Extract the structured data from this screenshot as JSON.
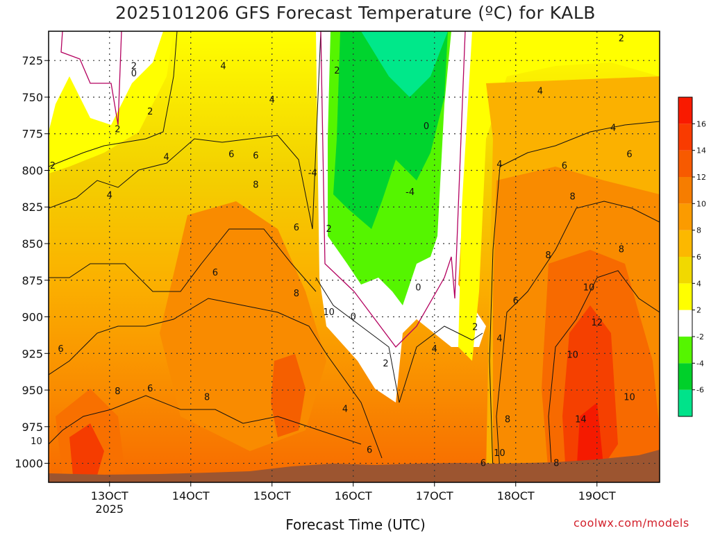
{
  "title": "2025101206 GFS Forecast Temperature (ºC) for KALB",
  "watermark": "coolwx.com/models",
  "chart_data": {
    "type": "heatmap",
    "title": "2025101206 GFS Forecast Temperature (ºC) for KALB",
    "xlabel": "Forecast Time (UTC)",
    "ylabel": "",
    "x_ticks": [
      "13OCT",
      "14OCT",
      "15OCT",
      "16OCT",
      "17OCT",
      "18OCT",
      "19OCT"
    ],
    "x_year_label": "2025",
    "y_ticks": [
      725,
      750,
      775,
      800,
      825,
      850,
      875,
      900,
      925,
      950,
      975,
      1000
    ],
    "y_axis_inverted": true,
    "y_range_hpa": [
      705,
      1013
    ],
    "colorbar": {
      "levels": [
        -6,
        -4,
        -2,
        2,
        4,
        6,
        8,
        10,
        12,
        14,
        16
      ],
      "colors": [
        "#00e38a",
        "#00d02a",
        "#55f500",
        "#ffffff",
        "#ffff00",
        "#f1d900",
        "#fcb800",
        "#fb9b00",
        "#f67d00",
        "#f75a00",
        "#f93b00",
        "#f91a00"
      ]
    },
    "contour_labels": [
      {
        "value": "2",
        "day": 13.3,
        "hpa": 729
      },
      {
        "value": "0",
        "day": 13.3,
        "hpa": 734
      },
      {
        "value": "2",
        "day": 13.5,
        "hpa": 760
      },
      {
        "value": "4",
        "day": 14.4,
        "hpa": 729
      },
      {
        "value": "2",
        "day": 13.1,
        "hpa": 772
      },
      {
        "value": "4",
        "day": 13.7,
        "hpa": 791
      },
      {
        "value": "6",
        "day": 14.5,
        "hpa": 789
      },
      {
        "value": "4",
        "day": 15.0,
        "hpa": 752
      },
      {
        "value": "6",
        "day": 14.8,
        "hpa": 790
      },
      {
        "value": "2",
        "day": 12.3,
        "hpa": 797
      },
      {
        "value": "4",
        "day": 13.0,
        "hpa": 817
      },
      {
        "value": "8",
        "day": 14.8,
        "hpa": 810
      },
      {
        "value": "6",
        "day": 15.3,
        "hpa": 839
      },
      {
        "value": "6",
        "day": 14.3,
        "hpa": 870
      },
      {
        "value": "8",
        "day": 15.3,
        "hpa": 884
      },
      {
        "value": "10",
        "day": 15.7,
        "hpa": 897
      },
      {
        "value": "6",
        "day": 12.4,
        "hpa": 922
      },
      {
        "value": "8",
        "day": 13.1,
        "hpa": 951
      },
      {
        "value": "6",
        "day": 13.5,
        "hpa": 949
      },
      {
        "value": "8",
        "day": 14.2,
        "hpa": 955
      },
      {
        "value": "10",
        "day": 12.1,
        "hpa": 985
      },
      {
        "value": "2",
        "day": 15.8,
        "hpa": 732
      },
      {
        "value": "2",
        "day": 15.7,
        "hpa": 840
      },
      {
        "value": "-4",
        "day": 15.5,
        "hpa": 802
      },
      {
        "value": "-4",
        "day": 16.7,
        "hpa": 815
      },
      {
        "value": "0",
        "day": 16.9,
        "hpa": 770
      },
      {
        "value": "0",
        "day": 16.0,
        "hpa": 900
      },
      {
        "value": "0",
        "day": 16.8,
        "hpa": 880
      },
      {
        "value": "2",
        "day": 16.4,
        "hpa": 932
      },
      {
        "value": "4",
        "day": 15.9,
        "hpa": 963
      },
      {
        "value": "6",
        "day": 16.2,
        "hpa": 991
      },
      {
        "value": "2",
        "day": 17.5,
        "hpa": 907
      },
      {
        "value": "4",
        "day": 17.0,
        "hpa": 922
      },
      {
        "value": "4",
        "day": 17.8,
        "hpa": 915
      },
      {
        "value": "4",
        "day": 17.8,
        "hpa": 796
      },
      {
        "value": "2",
        "day": 19.3,
        "hpa": 710
      },
      {
        "value": "4",
        "day": 18.3,
        "hpa": 746
      },
      {
        "value": "4",
        "day": 19.2,
        "hpa": 771
      },
      {
        "value": "6",
        "day": 18.6,
        "hpa": 797
      },
      {
        "value": "6",
        "day": 19.4,
        "hpa": 789
      },
      {
        "value": "8",
        "day": 18.7,
        "hpa": 818
      },
      {
        "value": "8",
        "day": 18.4,
        "hpa": 858
      },
      {
        "value": "8",
        "day": 19.3,
        "hpa": 854
      },
      {
        "value": "6",
        "day": 18.0,
        "hpa": 889
      },
      {
        "value": "10",
        "day": 18.9,
        "hpa": 880
      },
      {
        "value": "12",
        "day": 19.0,
        "hpa": 904
      },
      {
        "value": "10",
        "day": 18.7,
        "hpa": 926
      },
      {
        "value": "10",
        "day": 19.4,
        "hpa": 955
      },
      {
        "value": "14",
        "day": 18.8,
        "hpa": 970
      },
      {
        "value": "8",
        "day": 17.9,
        "hpa": 970
      },
      {
        "value": "10",
        "day": 17.8,
        "hpa": 993
      },
      {
        "value": "6",
        "day": 17.6,
        "hpa": 1000
      },
      {
        "value": "8",
        "day": 18.5,
        "hpa": 1000
      }
    ]
  }
}
